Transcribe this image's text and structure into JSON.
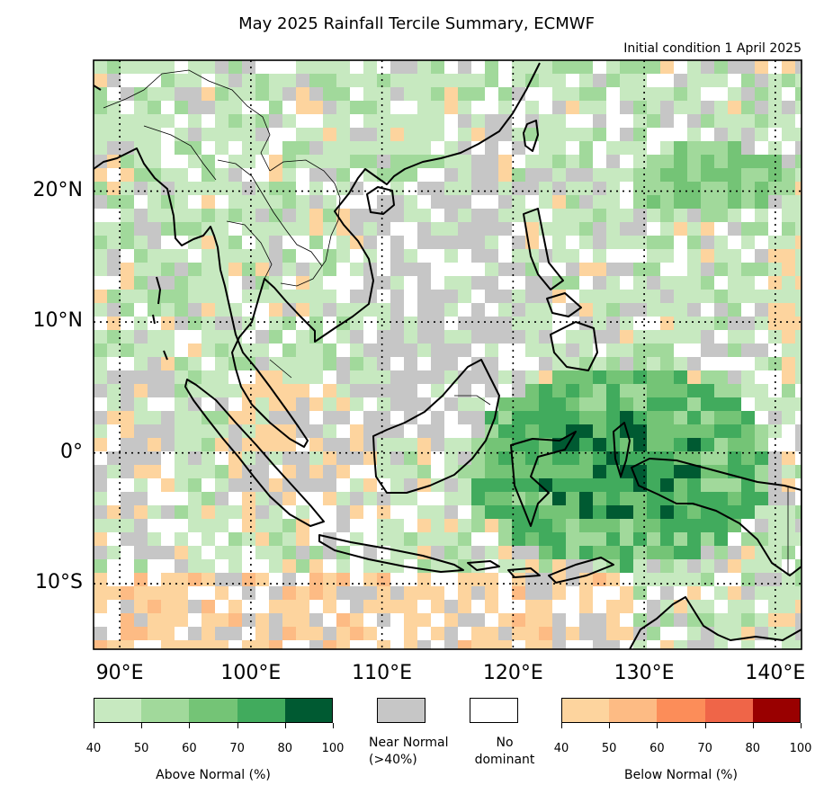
{
  "title": "May 2025 Rainfall Tercile Summary, ECMWF",
  "subtitle": "Initial condition 1 April 2025",
  "map": {
    "lon_range": [
      88,
      142
    ],
    "lat_range": [
      -15,
      30
    ],
    "lon_ticks": [
      {
        "value": 90,
        "label": "90°E"
      },
      {
        "value": 100,
        "label": "100°E"
      },
      {
        "value": 110,
        "label": "110°E"
      },
      {
        "value": 120,
        "label": "120°E"
      },
      {
        "value": 130,
        "label": "130°E"
      },
      {
        "value": 140,
        "label": "140°E"
      }
    ],
    "lat_ticks": [
      {
        "value": 20,
        "label": "20°N"
      },
      {
        "value": 10,
        "label": "10°N"
      },
      {
        "value": 0,
        "label": "0°"
      },
      {
        "value": -10,
        "label": "10°S"
      }
    ],
    "gridlines": "dotted"
  },
  "legend": {
    "above": {
      "label": "Above Normal (%)",
      "ticks": [
        "40",
        "50",
        "60",
        "70",
        "80",
        "100"
      ],
      "colors": [
        "#c7e9c0",
        "#a1d99b",
        "#74c476",
        "#41ab5d",
        "#005a32"
      ]
    },
    "near": {
      "label": "Near Normal\n(>40%)",
      "color": "#c6c6c6"
    },
    "none": {
      "label": "No\ndominant",
      "color": "#ffffff"
    },
    "below": {
      "label": "Below Normal (%)",
      "ticks": [
        "40",
        "50",
        "60",
        "70",
        "80",
        "100"
      ],
      "colors": [
        "#fdd49e",
        "#fdbb84",
        "#fc8d59",
        "#ef6548",
        "#990000"
      ]
    }
  }
}
